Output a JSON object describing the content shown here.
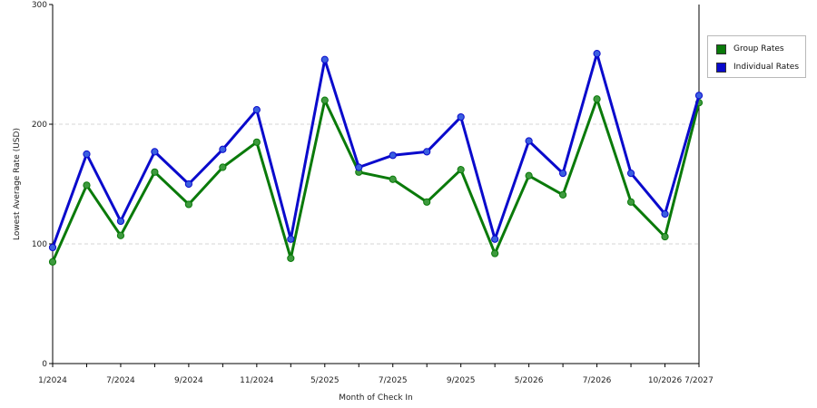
{
  "chart_data": {
    "type": "line",
    "xlabel": "Month of Check In",
    "ylabel": "Lowest Average Rate (USD)",
    "ylim": [
      0,
      300
    ],
    "yticks": [
      0,
      100,
      200,
      300
    ],
    "grid": "horizontal dashed",
    "legend_position": "right",
    "x_tick_labels": [
      "1/2024",
      "7/2024",
      "9/2024",
      "11/2024",
      "5/2025",
      "7/2025",
      "9/2025",
      "5/2026",
      "7/2026",
      "10/2026",
      "7/2027"
    ],
    "series": [
      {
        "name": "Group Rates",
        "color": "#0a7a0a",
        "values": [
          85,
          149,
          107,
          160,
          133,
          164,
          185,
          88,
          220,
          160,
          154,
          135,
          162,
          92,
          157,
          141,
          221,
          135,
          106,
          218
        ]
      },
      {
        "name": "Individual Rates",
        "color": "#0a0acc",
        "values": [
          97,
          175,
          119,
          177,
          150,
          179,
          212,
          104,
          254,
          164,
          174,
          177,
          206,
          104,
          186,
          159,
          259,
          159,
          125,
          224
        ]
      }
    ]
  }
}
